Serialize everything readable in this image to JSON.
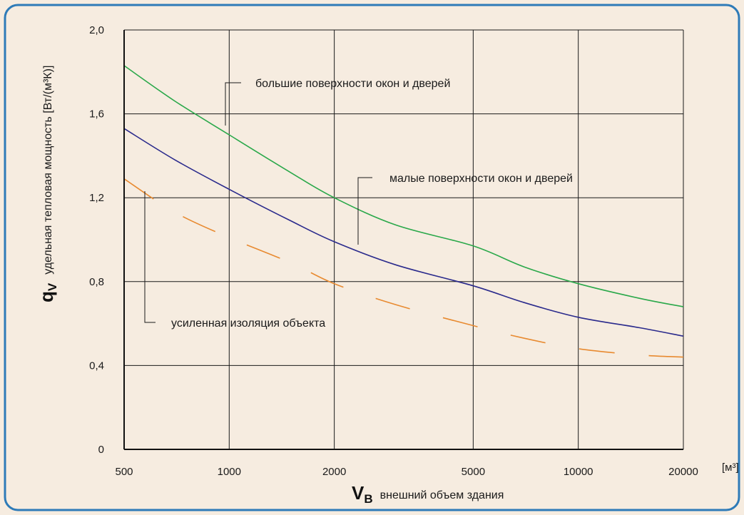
{
  "chart_data": {
    "type": "line",
    "x_scale": "log",
    "grid": true,
    "xlim": [
      500,
      20000
    ],
    "ylim": [
      0,
      2.0
    ],
    "x_ticks": [
      "500",
      "1000",
      "2000",
      "5000",
      "10000",
      "20000"
    ],
    "y_ticks": [
      "0",
      "0,4",
      "0,8",
      "1,2",
      "1,6",
      "2,0"
    ],
    "x_unit": "[м³]",
    "xlabel_symbol": "V",
    "xlabel_symbol_sub": "B",
    "xlabel_text": "внешний объем здания",
    "ylabel_symbol": "q",
    "ylabel_symbol_sub": "V",
    "ylabel_text": "удельная тепловая мощность [Вт/(м³К)]",
    "series": [
      {
        "name": "большие поверхности окон и дверей",
        "color": "#2aa84a",
        "style": "solid",
        "x": [
          500,
          700,
          1000,
          1500,
          2000,
          3000,
          5000,
          7000,
          10000,
          15000,
          20000
        ],
        "y": [
          1.83,
          1.66,
          1.5,
          1.32,
          1.2,
          1.07,
          0.97,
          0.87,
          0.79,
          0.72,
          0.68
        ]
      },
      {
        "name": "малые поверхности окон и дверей",
        "color": "#2a2a8c",
        "style": "solid",
        "x": [
          500,
          700,
          1000,
          1500,
          2000,
          3000,
          5000,
          7000,
          10000,
          15000,
          20000
        ],
        "y": [
          1.53,
          1.38,
          1.24,
          1.09,
          0.99,
          0.88,
          0.78,
          0.7,
          0.63,
          0.58,
          0.54
        ]
      },
      {
        "name": "усиленная изоляция объекта",
        "color": "#e88a30",
        "style": "dashed",
        "x": [
          500,
          700,
          1000,
          1500,
          2000,
          3000,
          5000,
          7000,
          10000,
          15000,
          20000
        ],
        "y": [
          1.29,
          1.13,
          1.01,
          0.89,
          0.79,
          0.69,
          0.59,
          0.53,
          0.48,
          0.45,
          0.44
        ]
      }
    ],
    "annotations": [
      "большие поверхности окон и дверей",
      "малые поверхности окон и дверей",
      "усиленная изоляция объекта"
    ]
  }
}
